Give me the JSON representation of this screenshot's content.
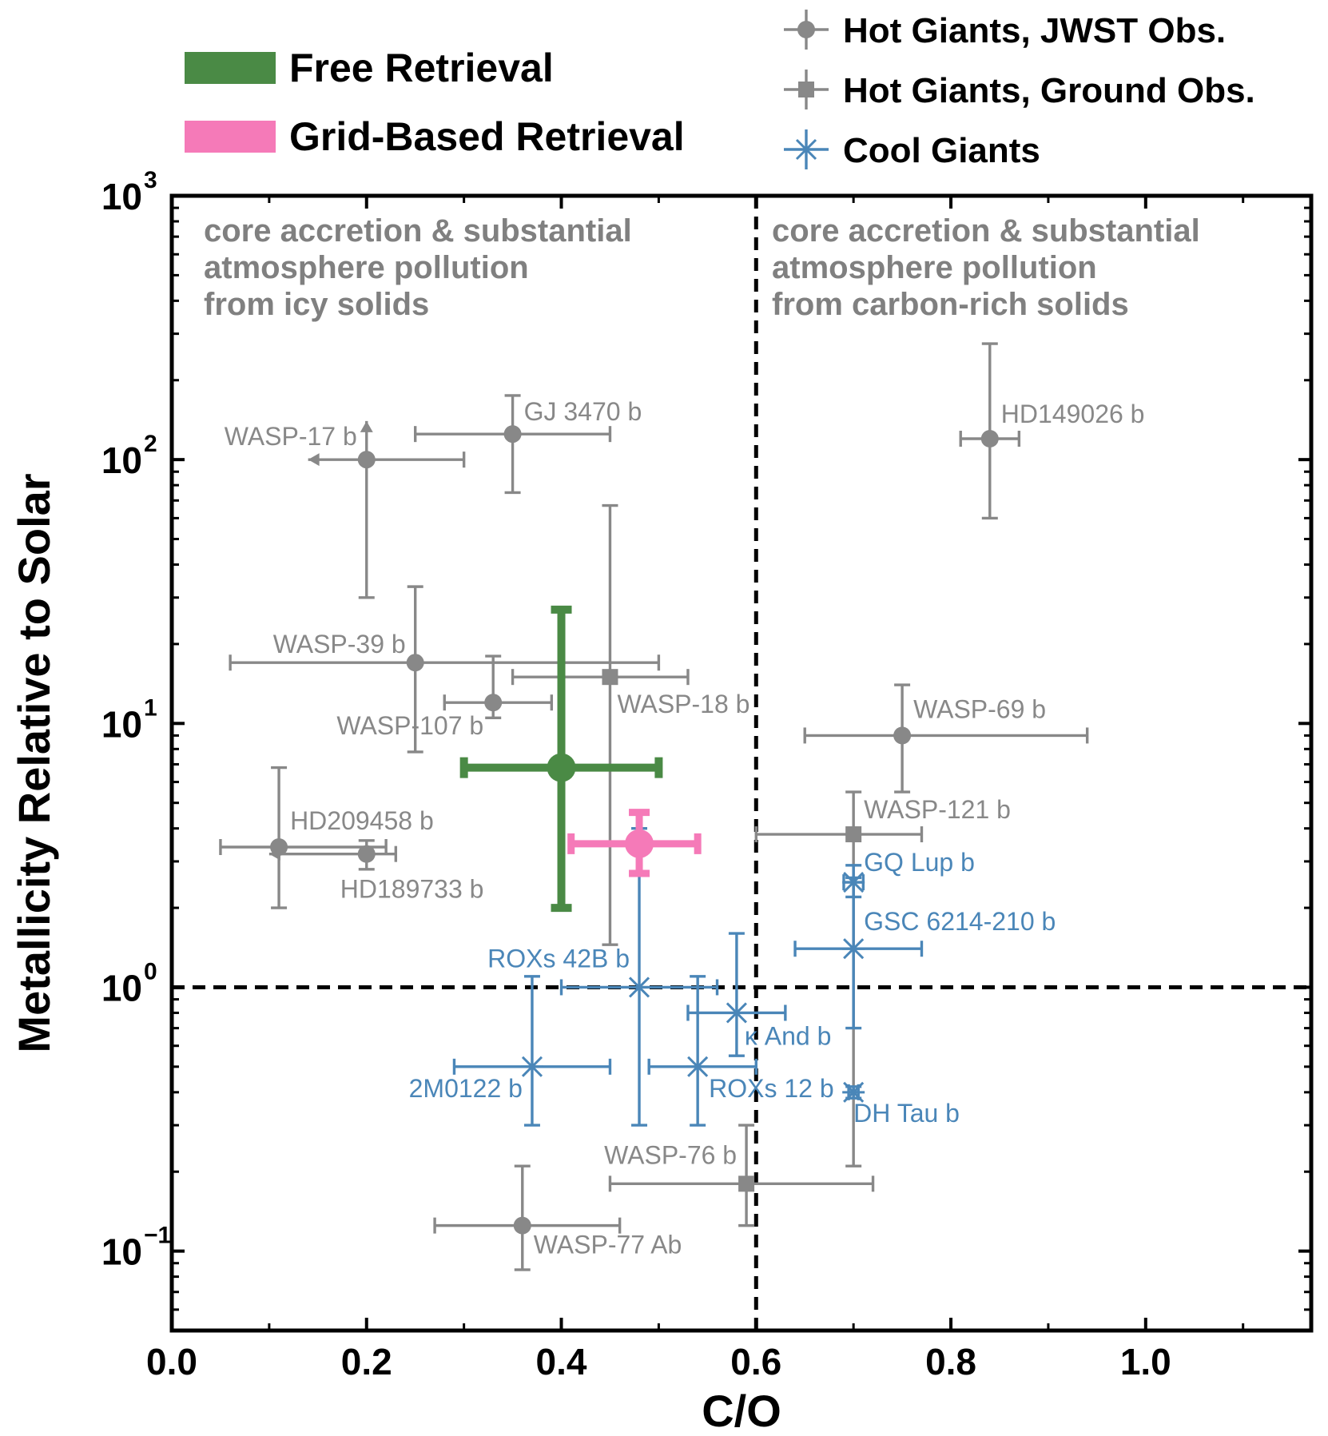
{
  "chart_data": {
    "type": "scatter",
    "xlabel": "C/O",
    "ylabel": "Metallicity Relative to Solar",
    "xscale": "linear",
    "yscale": "log",
    "xlim": [
      0.0,
      1.17
    ],
    "ylim": [
      0.05,
      1000
    ],
    "x_ticks": [
      0.0,
      0.2,
      0.4,
      0.6,
      0.8,
      1.0
    ],
    "x_tick_labels": [
      "0.0",
      "0.2",
      "0.4",
      "0.6",
      "0.8",
      "1.0"
    ],
    "y_ticks": [
      {
        "value": 0.1,
        "base": "10",
        "exp": "−1"
      },
      {
        "value": 1,
        "base": "10",
        "exp": "0"
      },
      {
        "value": 10,
        "base": "10",
        "exp": "1"
      },
      {
        "value": 100,
        "base": "10",
        "exp": "2"
      },
      {
        "value": 1000,
        "base": "10",
        "exp": "3"
      }
    ],
    "reference_lines": [
      {
        "axis": "x",
        "value": 0.6,
        "style": "dashed"
      },
      {
        "axis": "y",
        "value": 1.0,
        "style": "dashed"
      }
    ],
    "region_labels": [
      {
        "lines": [
          "core accretion & substantial",
          "atmosphere pollution",
          "from icy solids"
        ],
        "region": "top-left"
      },
      {
        "lines": [
          "core accretion & substantial",
          "atmosphere pollution",
          "from carbon-rich solids"
        ],
        "region": "top-right"
      }
    ],
    "legend_left": [
      {
        "label": "Free Retrieval",
        "color": "#4a8a45"
      },
      {
        "label": "Grid-Based Retrieval",
        "color": "#f57ab8"
      }
    ],
    "legend_right": [
      {
        "label": "Hot Giants, JWST Obs.",
        "color": "#888888",
        "marker": "circle"
      },
      {
        "label": "Hot Giants, Ground Obs.",
        "color": "#888888",
        "marker": "square"
      },
      {
        "label": "Cool Giants",
        "color": "#4a86b8",
        "marker": "x"
      }
    ],
    "series": [
      {
        "name": "Hot Giants, JWST Obs.",
        "color": "#888888",
        "marker": "circle",
        "points": [
          {
            "label": "GJ 3470 b",
            "x": 0.35,
            "xerr": [
              0.25,
              0.45
            ],
            "y": 125,
            "yerr": [
              75,
              175
            ]
          },
          {
            "label": "WASP-17 b",
            "x": 0.2,
            "xerr": [
              0.14,
              0.3
            ],
            "y": 100,
            "yerr": [
              30,
              140
            ],
            "x_upper_limit": true,
            "y_lower_limit": true
          },
          {
            "label": "HD149026 b",
            "x": 0.84,
            "xerr": [
              0.81,
              0.87
            ],
            "y": 120,
            "yerr": [
              60,
              275
            ]
          },
          {
            "label": "WASP-39 b",
            "x": 0.25,
            "xerr": [
              0.06,
              0.5
            ],
            "y": 17,
            "yerr": [
              7.8,
              33
            ]
          },
          {
            "label": "WASP-107 b",
            "x": 0.33,
            "xerr": [
              0.28,
              0.39
            ],
            "y": 12,
            "yerr": [
              10.5,
              18
            ]
          },
          {
            "label": "WASP-69 b",
            "x": 0.75,
            "xerr": [
              0.65,
              0.94
            ],
            "y": 9,
            "yerr": [
              5.5,
              14
            ]
          },
          {
            "label": "HD209458 b",
            "x": 0.11,
            "xerr": [
              0.05,
              0.22
            ],
            "y": 3.4,
            "yerr": [
              2.0,
              6.8
            ]
          },
          {
            "label": "HD189733 b",
            "x": 0.2,
            "xerr": [
              0.1,
              0.23
            ],
            "y": 3.2,
            "yerr": [
              2.8,
              3.6
            ],
            "x_upper_limit": true
          },
          {
            "label": "WASP-77 Ab",
            "x": 0.36,
            "xerr": [
              0.27,
              0.46
            ],
            "y": 0.125,
            "yerr": [
              0.085,
              0.21
            ]
          }
        ]
      },
      {
        "name": "Hot Giants, Ground Obs.",
        "color": "#888888",
        "marker": "square",
        "points": [
          {
            "label": "WASP-18 b",
            "x": 0.45,
            "xerr": [
              0.35,
              0.53
            ],
            "y": 15,
            "yerr": [
              1.45,
              67
            ]
          },
          {
            "label": "WASP-121 b",
            "x": 0.7,
            "xerr": [
              0.6,
              0.77
            ],
            "y": 3.8,
            "yerr": [
              0.21,
              5.5
            ]
          },
          {
            "label": "WASP-76 b",
            "x": 0.59,
            "xerr": [
              0.45,
              0.72
            ],
            "y": 0.18,
            "yerr": [
              0.125,
              0.3
            ]
          }
        ]
      },
      {
        "name": "Cool Giants",
        "color": "#4a86b8",
        "marker": "x",
        "points": [
          {
            "label": "GQ Lup b",
            "x": 0.7,
            "xerr": [
              0.69,
              0.71
            ],
            "y": 2.5,
            "yerr": [
              2.2,
              2.9
            ]
          },
          {
            "label": "GSC 6214-210 b",
            "x": 0.7,
            "xerr": [
              0.64,
              0.77
            ],
            "y": 1.4,
            "yerr": [
              0.7,
              2.6
            ]
          },
          {
            "label": "ROXs 42B b",
            "x": 0.48,
            "xerr": [
              0.4,
              0.56
            ],
            "y": 1.0,
            "yerr": [
              0.3,
              4.0
            ]
          },
          {
            "label": "κ And b",
            "x": 0.58,
            "xerr": [
              0.53,
              0.63
            ],
            "y": 0.8,
            "yerr": [
              0.55,
              1.6
            ]
          },
          {
            "label": "2M0122 b",
            "x": 0.37,
            "xerr": [
              0.29,
              0.45
            ],
            "y": 0.5,
            "yerr": [
              0.3,
              1.1
            ]
          },
          {
            "label": "ROXs 12 b",
            "x": 0.54,
            "xerr": [
              0.49,
              0.6
            ],
            "y": 0.5,
            "yerr": [
              0.3,
              1.1
            ]
          },
          {
            "label": "DH Tau b",
            "x": 0.7,
            "xerr": [
              0.695,
              0.705
            ],
            "y": 0.4,
            "yerr": [
              0.38,
              0.42
            ]
          }
        ]
      },
      {
        "name": "Free Retrieval",
        "color": "#4a8a45",
        "marker": "circle",
        "points": [
          {
            "x": 0.4,
            "xerr": [
              0.3,
              0.5
            ],
            "y": 6.8,
            "yerr": [
              2.0,
              27
            ]
          }
        ]
      },
      {
        "name": "Grid-Based Retrieval",
        "color": "#f57ab8",
        "marker": "circle",
        "points": [
          {
            "x": 0.48,
            "xerr": [
              0.41,
              0.54
            ],
            "y": 3.5,
            "yerr": [
              2.7,
              4.6
            ]
          }
        ]
      }
    ]
  }
}
